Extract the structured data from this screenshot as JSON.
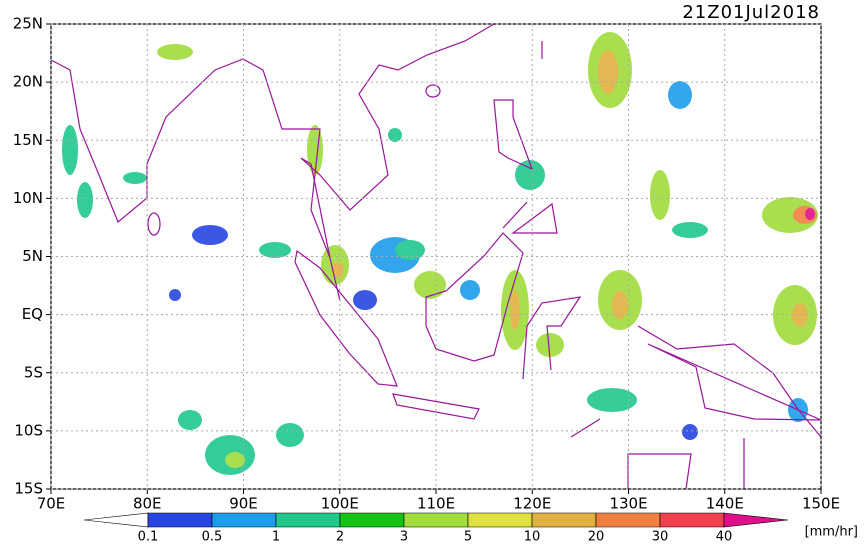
{
  "map": {
    "title": "21Z01Jul2018",
    "lon_range": [
      70,
      150
    ],
    "lat_range": [
      -15,
      25
    ],
    "lon_ticks": [
      {
        "value": 70,
        "label": "70E"
      },
      {
        "value": 80,
        "label": "80E"
      },
      {
        "value": 90,
        "label": "90E"
      },
      {
        "value": 100,
        "label": "100E"
      },
      {
        "value": 110,
        "label": "110E"
      },
      {
        "value": 120,
        "label": "120E"
      },
      {
        "value": 130,
        "label": "130E"
      },
      {
        "value": 140,
        "label": "140E"
      },
      {
        "value": 150,
        "label": "150E"
      }
    ],
    "lat_ticks": [
      {
        "value": 25,
        "label": "25N"
      },
      {
        "value": 20,
        "label": "20N"
      },
      {
        "value": 15,
        "label": "15N"
      },
      {
        "value": 10,
        "label": "10N"
      },
      {
        "value": 5,
        "label": "5N"
      },
      {
        "value": 0,
        "label": "EQ"
      },
      {
        "value": -5,
        "label": "5S"
      },
      {
        "value": -10,
        "label": "10S"
      },
      {
        "value": -15,
        "label": "15S"
      }
    ]
  },
  "colorbar": {
    "levels": [
      0.1,
      0.5,
      1,
      2,
      3,
      5,
      10,
      20,
      30,
      40
    ],
    "colors": [
      "#ffffff",
      "#2845e0",
      "#1e9cec",
      "#20c88c",
      "#14c414",
      "#a0dc3c",
      "#e0e040",
      "#e0b040",
      "#f08040",
      "#f04050",
      "#e0108c"
    ],
    "unit": "[mm/hr]"
  }
}
